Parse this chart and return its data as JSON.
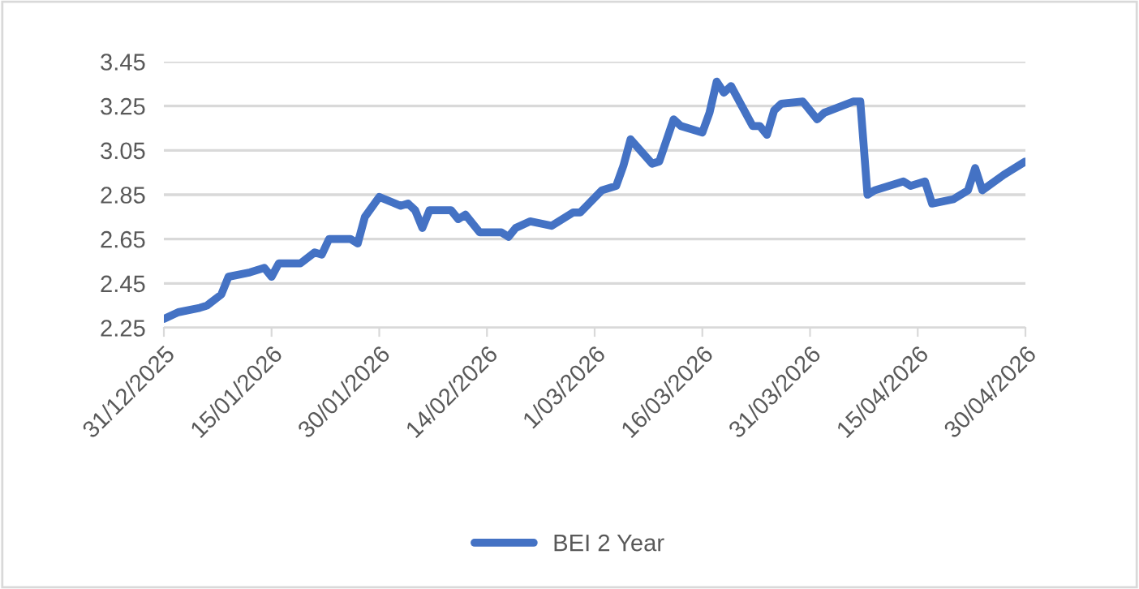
{
  "chart_data": {
    "type": "line",
    "x": [
      "2025-12-31",
      "2026-01-02",
      "2026-01-05",
      "2026-01-06",
      "2026-01-08",
      "2026-01-09",
      "2026-01-12",
      "2026-01-13",
      "2026-01-14",
      "2026-01-15",
      "2026-01-16",
      "2026-01-19",
      "2026-01-21",
      "2026-01-22",
      "2026-01-23",
      "2026-01-26",
      "2026-01-27",
      "2026-01-28",
      "2026-01-30",
      "2026-02-02",
      "2026-02-03",
      "2026-02-04",
      "2026-02-05",
      "2026-02-06",
      "2026-02-09",
      "2026-02-10",
      "2026-02-11",
      "2026-02-13",
      "2026-02-16",
      "2026-02-17",
      "2026-02-18",
      "2026-02-20",
      "2026-02-23",
      "2026-02-24",
      "2026-02-26",
      "2026-02-27",
      "2026-03-02",
      "2026-03-04",
      "2026-03-05",
      "2026-03-06",
      "2026-03-09",
      "2026-03-10",
      "2026-03-12",
      "2026-03-13",
      "2026-03-16",
      "2026-03-17",
      "2026-03-18",
      "2026-03-19",
      "2026-03-20",
      "2026-03-23",
      "2026-03-24",
      "2026-03-25",
      "2026-03-26",
      "2026-03-27",
      "2026-03-30",
      "2026-04-01",
      "2026-04-02",
      "2026-04-06",
      "2026-04-07",
      "2026-04-08",
      "2026-04-09",
      "2026-04-10",
      "2026-04-13",
      "2026-04-14",
      "2026-04-16",
      "2026-04-17",
      "2026-04-20",
      "2026-04-22",
      "2026-04-23",
      "2026-04-24",
      "2026-04-27",
      "2026-04-28",
      "2026-04-30"
    ],
    "series": [
      {
        "name": "BEI 2 Year",
        "color": "#4472c4",
        "values": [
          2.29,
          2.32,
          2.34,
          2.35,
          2.4,
          2.48,
          2.5,
          2.51,
          2.52,
          2.48,
          2.54,
          2.54,
          2.59,
          2.58,
          2.65,
          2.65,
          2.63,
          2.75,
          2.84,
          2.8,
          2.81,
          2.78,
          2.7,
          2.78,
          2.78,
          2.74,
          2.76,
          2.68,
          2.68,
          2.66,
          2.7,
          2.73,
          2.71,
          2.73,
          2.77,
          2.77,
          2.87,
          2.89,
          2.98,
          3.1,
          2.99,
          3.0,
          3.19,
          3.16,
          3.13,
          3.22,
          3.36,
          3.31,
          3.34,
          3.16,
          3.16,
          3.12,
          3.23,
          3.26,
          3.27,
          3.19,
          3.22,
          3.27,
          3.27,
          2.85,
          2.87,
          2.88,
          2.91,
          2.89,
          2.91,
          2.81,
          2.83,
          2.87,
          2.97,
          2.87,
          2.94,
          2.96,
          3.0
        ]
      }
    ],
    "xlim": [
      "2025-12-31",
      "2026-04-30"
    ],
    "xticks": [
      {
        "value": "2025-12-31",
        "label": "31/12/2025"
      },
      {
        "value": "2026-01-15",
        "label": "15/01/2026"
      },
      {
        "value": "2026-01-30",
        "label": "30/01/2026"
      },
      {
        "value": "2026-02-14",
        "label": "14/02/2026"
      },
      {
        "value": "2026-03-01",
        "label": "1/03/2026"
      },
      {
        "value": "2026-03-16",
        "label": "16/03/2026"
      },
      {
        "value": "2026-03-31",
        "label": "31/03/2026"
      },
      {
        "value": "2026-04-15",
        "label": "15/04/2026"
      },
      {
        "value": "2026-04-30",
        "label": "30/04/2026"
      }
    ],
    "ylim": [
      2.25,
      3.45
    ],
    "yticks": [
      {
        "value": 2.25,
        "label": "2.25"
      },
      {
        "value": 2.45,
        "label": "2.45"
      },
      {
        "value": 2.65,
        "label": "2.65"
      },
      {
        "value": 2.85,
        "label": "2.85"
      },
      {
        "value": 3.05,
        "label": "3.05"
      },
      {
        "value": 3.25,
        "label": "3.25"
      },
      {
        "value": 3.45,
        "label": "3.45"
      }
    ],
    "grid": "y",
    "legend": "bottom",
    "marker": "none",
    "line_style": "solid"
  }
}
